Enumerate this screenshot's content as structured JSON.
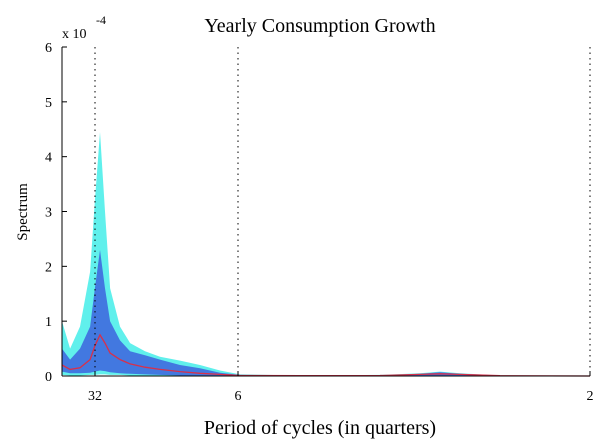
{
  "chart_data": {
    "type": "line",
    "title": "Yearly Consumption Growth",
    "xlabel": "Period of cycles (in quarters)",
    "ylabel": "Spectrum",
    "y_multiplier": {
      "base": "x 10",
      "exponent": "-4"
    },
    "x": [
      0,
      0.048,
      0.107,
      0.167,
      0.196,
      0.226,
      0.256,
      0.286,
      0.345,
      0.405,
      0.494,
      0.583,
      0.702,
      0.821,
      0.94,
      1.059,
      1.416,
      1.892,
      2.13,
      2.249,
      2.368,
      2.606,
      3.142
    ],
    "series": [
      {
        "color": "#60f0ec",
        "upper": [
          1.0,
          0.5,
          0.9,
          1.9,
          3.2,
          4.45,
          3.0,
          1.6,
          0.9,
          0.6,
          0.45,
          0.35,
          0.28,
          0.2,
          0.1,
          0.03,
          0.01,
          0.02,
          0.05,
          0.08,
          0.05,
          0.01,
          0
        ],
        "lower": [
          0.02,
          0.01,
          0.01,
          0.02,
          0.02,
          0.03,
          0.03,
          0.02,
          0.02,
          0.01,
          0.01,
          0.01,
          0,
          0,
          0,
          0,
          0,
          0,
          0,
          0,
          0,
          0,
          0
        ]
      },
      {
        "color": "#4278e0",
        "upper": [
          0.5,
          0.3,
          0.5,
          0.9,
          1.6,
          2.3,
          1.6,
          1.0,
          0.65,
          0.45,
          0.38,
          0.3,
          0.2,
          0.14,
          0.06,
          0.02,
          0.01,
          0.01,
          0.04,
          0.07,
          0.04,
          0.01,
          0
        ],
        "lower": [
          0.08,
          0.05,
          0.05,
          0.06,
          0.08,
          0.1,
          0.09,
          0.07,
          0.05,
          0.04,
          0.03,
          0.02,
          0.01,
          0.01,
          0.005,
          0,
          0,
          0,
          0.01,
          0.01,
          0.01,
          0,
          0
        ]
      },
      {
        "color": "#d8304a",
        "values": [
          0.2,
          0.12,
          0.15,
          0.3,
          0.55,
          0.75,
          0.6,
          0.42,
          0.3,
          0.22,
          0.16,
          0.12,
          0.08,
          0.05,
          0.03,
          0.01,
          0.005,
          0.01,
          0.03,
          0.04,
          0.03,
          0.005,
          0
        ]
      }
    ],
    "xlim": [
      0,
      3.1416
    ],
    "ylim": [
      0,
      6
    ],
    "xticks": [
      {
        "value": 0.19635,
        "label": "32"
      },
      {
        "value": 1.0472,
        "label": "6"
      },
      {
        "value": 3.1416,
        "label": "2"
      }
    ],
    "yticks": [
      0,
      1,
      2,
      3,
      4,
      5,
      6
    ],
    "xgrid": "dotted"
  }
}
